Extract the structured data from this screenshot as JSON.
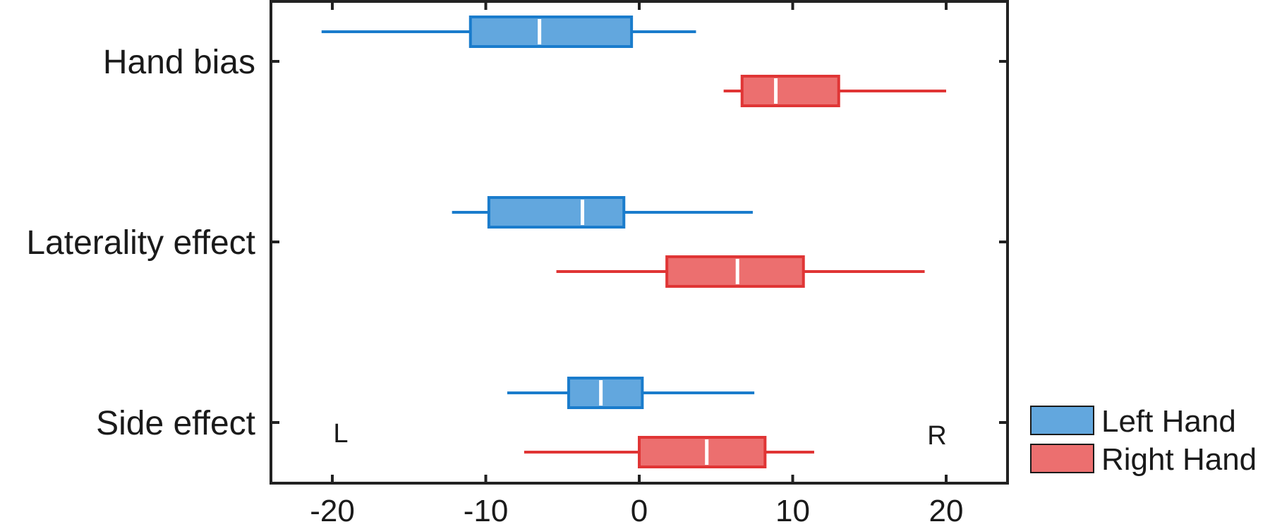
{
  "chart_data": {
    "type": "box",
    "orientation": "horizontal",
    "title": "",
    "xlabel": "",
    "ylabel": "",
    "xlim": [
      -24,
      24
    ],
    "x_ticks": [
      -20,
      -10,
      0,
      10,
      20
    ],
    "x_tick_labels": [
      "-20",
      "-10",
      "0",
      "10",
      "20"
    ],
    "categories": [
      "Hand bias",
      "Laterality effect",
      "Side effect"
    ],
    "grid": false,
    "legend_position": "bottom-right",
    "annotations": {
      "left": "L",
      "right": "R"
    },
    "series": [
      {
        "name": "Left Hand",
        "color": "#1a7ccc",
        "fill": "#62a7de",
        "boxes": [
          {
            "whisker_low": -20.7,
            "q1": -11.0,
            "median": -6.5,
            "q3": -0.5,
            "whisker_high": 3.7
          },
          {
            "whisker_low": -12.2,
            "q1": -9.8,
            "median": -3.7,
            "q3": -1.0,
            "whisker_high": 7.4
          },
          {
            "whisker_low": -8.6,
            "q1": -4.6,
            "median": -2.5,
            "q3": 0.2,
            "whisker_high": 7.5
          }
        ]
      },
      {
        "name": "Right Hand",
        "color": "#e03535",
        "fill": "#ec6f6f",
        "boxes": [
          {
            "whisker_low": 5.5,
            "q1": 6.7,
            "median": 8.9,
            "q3": 13.0,
            "whisker_high": 20.0
          },
          {
            "whisker_low": -5.4,
            "q1": 1.8,
            "median": 6.4,
            "q3": 10.7,
            "whisker_high": 18.6
          },
          {
            "whisker_low": -7.5,
            "q1": 0.0,
            "median": 4.4,
            "q3": 8.2,
            "whisker_high": 11.4
          }
        ]
      }
    ]
  }
}
